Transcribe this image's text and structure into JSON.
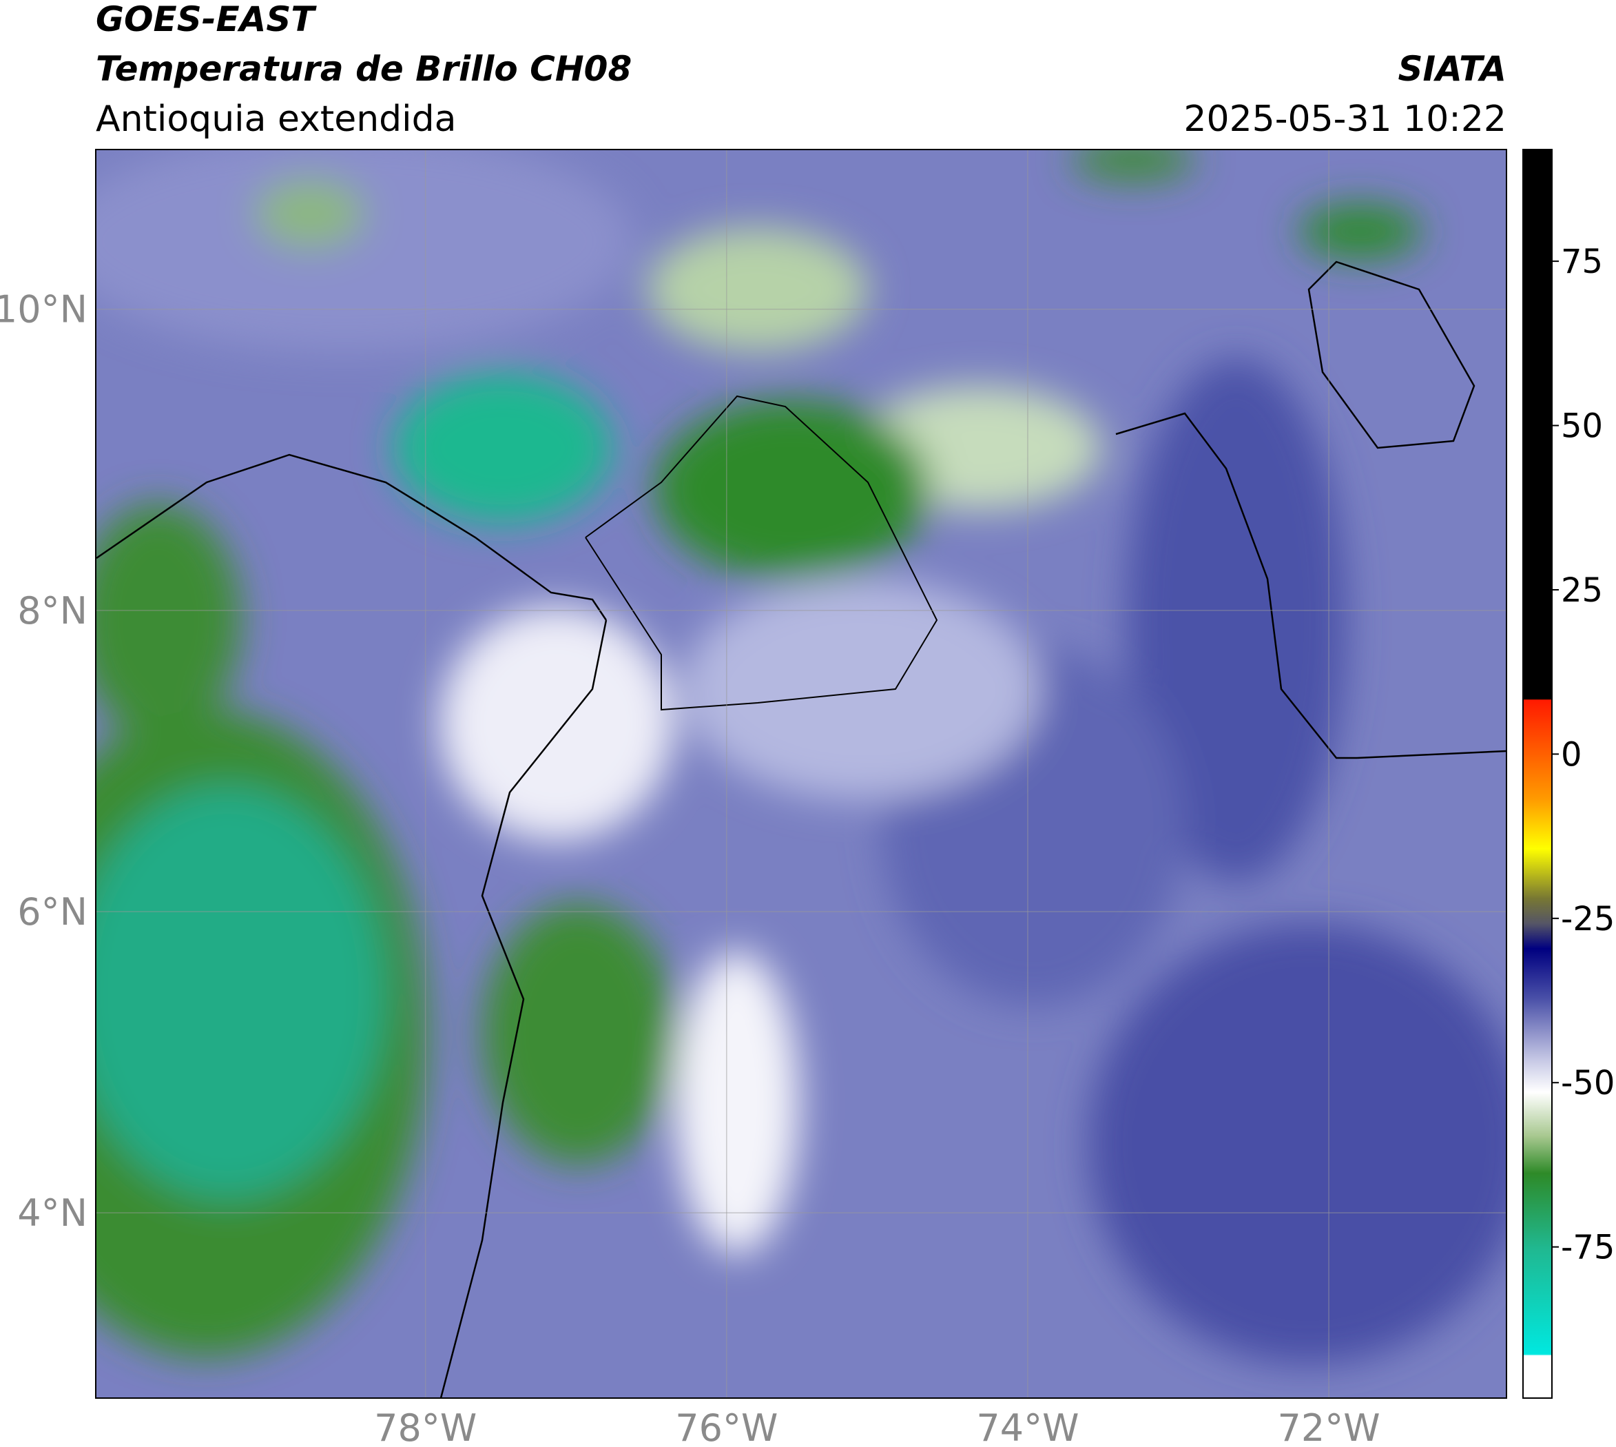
{
  "header": {
    "title": "GOES-EAST",
    "subtitle": "Temperatura de Brillo CH08",
    "region": "Antioquia extendida",
    "source": "SIATA",
    "datetime": "2025-05-31 10:22"
  },
  "chart_data": {
    "type": "map",
    "xlim": [
      -80.19,
      -70.82
    ],
    "ylim": [
      2.77,
      11.06
    ],
    "xticks": [
      {
        "value": -78,
        "label": "78°W"
      },
      {
        "value": -76,
        "label": "76°W"
      },
      {
        "value": -74,
        "label": "74°W"
      },
      {
        "value": -72,
        "label": "72°W"
      }
    ],
    "yticks": [
      {
        "value": 10,
        "label": "10°N"
      },
      {
        "value": 8,
        "label": "8°N"
      },
      {
        "value": 6,
        "label": "6°N"
      },
      {
        "value": 4,
        "label": "4°N"
      }
    ],
    "grid": true,
    "colorbar": {
      "lim": [
        -98,
        92
      ],
      "ticks": [
        75,
        50,
        25,
        0,
        -25,
        -50,
        -75
      ]
    }
  }
}
